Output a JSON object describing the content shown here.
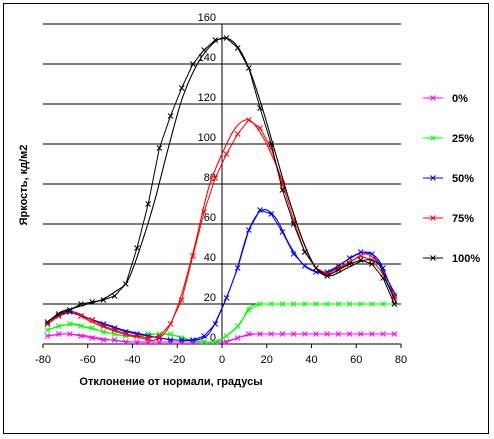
{
  "chart_data": {
    "type": "line",
    "title": "",
    "xlabel": "Отклонение от нормали, градусы",
    "ylabel": "Яркость, кд/м2",
    "xlim": [
      -80,
      80
    ],
    "ylim": [
      0,
      160
    ],
    "x_ticks": [
      "-80",
      "-60",
      "-40",
      "-20",
      "0",
      "20",
      "40",
      "60",
      "80"
    ],
    "y_ticks": [
      "0",
      "20",
      "40",
      "60",
      "80",
      "100",
      "120",
      "140",
      "160"
    ],
    "grid": "horizontal",
    "legend_position": "right",
    "series": [
      {
        "name": "0%",
        "color": "#ff00ff",
        "smooth": [
          [
            -78,
            4
          ],
          [
            -70,
            5
          ],
          [
            -60,
            4
          ],
          [
            -50,
            2
          ],
          [
            -40,
            1
          ],
          [
            -30,
            1
          ],
          [
            -20,
            1
          ],
          [
            -10,
            1
          ],
          [
            0,
            1
          ],
          [
            10,
            4
          ],
          [
            15,
            5
          ],
          [
            20,
            5
          ],
          [
            40,
            5
          ],
          [
            60,
            5
          ],
          [
            78,
            5
          ]
        ],
        "points": [
          [
            -78,
            4
          ],
          [
            -73,
            5
          ],
          [
            -68,
            5
          ],
          [
            -63,
            4
          ],
          [
            -58,
            3
          ],
          [
            -53,
            2
          ],
          [
            -48,
            2
          ],
          [
            -43,
            1
          ],
          [
            -38,
            1
          ],
          [
            -33,
            1
          ],
          [
            -28,
            1
          ],
          [
            -23,
            1
          ],
          [
            -18,
            1
          ],
          [
            -13,
            1
          ],
          [
            -8,
            1
          ],
          [
            -3,
            1
          ],
          [
            2,
            1
          ],
          [
            7,
            3
          ],
          [
            12,
            5
          ],
          [
            17,
            5
          ],
          [
            22,
            5
          ],
          [
            27,
            5
          ],
          [
            32,
            5
          ],
          [
            37,
            5
          ],
          [
            42,
            5
          ],
          [
            47,
            5
          ],
          [
            52,
            5
          ],
          [
            57,
            5
          ],
          [
            62,
            5
          ],
          [
            67,
            5
          ],
          [
            72,
            5
          ],
          [
            77,
            5
          ]
        ]
      },
      {
        "name": "25%",
        "color": "#00ff00",
        "smooth": [
          [
            -78,
            7
          ],
          [
            -72,
            9
          ],
          [
            -66,
            10
          ],
          [
            -60,
            8
          ],
          [
            -52,
            6
          ],
          [
            -44,
            4
          ],
          [
            -36,
            4
          ],
          [
            -28,
            5
          ],
          [
            -20,
            4
          ],
          [
            -14,
            2
          ],
          [
            -8,
            1
          ],
          [
            -3,
            1
          ],
          [
            2,
            4
          ],
          [
            8,
            10
          ],
          [
            12,
            18
          ],
          [
            16,
            20
          ],
          [
            20,
            20
          ],
          [
            40,
            20
          ],
          [
            60,
            20
          ],
          [
            78,
            20
          ]
        ],
        "points": [
          [
            -78,
            7
          ],
          [
            -73,
            9
          ],
          [
            -68,
            10
          ],
          [
            -63,
            9
          ],
          [
            -58,
            8
          ],
          [
            -53,
            6
          ],
          [
            -48,
            5
          ],
          [
            -43,
            4
          ],
          [
            -38,
            4
          ],
          [
            -33,
            5
          ],
          [
            -28,
            5
          ],
          [
            -23,
            5
          ],
          [
            -18,
            3
          ],
          [
            -13,
            2
          ],
          [
            -8,
            1
          ],
          [
            -3,
            1
          ],
          [
            2,
            4
          ],
          [
            7,
            9
          ],
          [
            12,
            17
          ],
          [
            17,
            20
          ],
          [
            22,
            20
          ],
          [
            27,
            20
          ],
          [
            32,
            20
          ],
          [
            37,
            20
          ],
          [
            42,
            20
          ],
          [
            47,
            20
          ],
          [
            52,
            20
          ],
          [
            57,
            20
          ],
          [
            62,
            20
          ],
          [
            67,
            20
          ],
          [
            72,
            20
          ],
          [
            77,
            20
          ]
        ]
      },
      {
        "name": "50%",
        "color": "#0000ff",
        "smooth": [
          [
            -78,
            10
          ],
          [
            -72,
            15
          ],
          [
            -66,
            16
          ],
          [
            -60,
            13
          ],
          [
            -52,
            10
          ],
          [
            -44,
            7
          ],
          [
            -36,
            5
          ],
          [
            -28,
            3
          ],
          [
            -20,
            2
          ],
          [
            -12,
            2
          ],
          [
            -6,
            5
          ],
          [
            0,
            18
          ],
          [
            6,
            35
          ],
          [
            12,
            57
          ],
          [
            18,
            67
          ],
          [
            24,
            63
          ],
          [
            30,
            50
          ],
          [
            36,
            40
          ],
          [
            42,
            36
          ],
          [
            48,
            36
          ],
          [
            56,
            42
          ],
          [
            64,
            46
          ],
          [
            70,
            42
          ],
          [
            74,
            32
          ],
          [
            78,
            24
          ]
        ],
        "points": [
          [
            -78,
            10
          ],
          [
            -73,
            14
          ],
          [
            -68,
            16
          ],
          [
            -63,
            14
          ],
          [
            -58,
            12
          ],
          [
            -53,
            10
          ],
          [
            -48,
            8
          ],
          [
            -43,
            6
          ],
          [
            -38,
            5
          ],
          [
            -33,
            4
          ],
          [
            -28,
            3
          ],
          [
            -23,
            2
          ],
          [
            -18,
            2
          ],
          [
            -13,
            2
          ],
          [
            -8,
            4
          ],
          [
            -3,
            10
          ],
          [
            2,
            23
          ],
          [
            7,
            38
          ],
          [
            12,
            57
          ],
          [
            17,
            67
          ],
          [
            22,
            65
          ],
          [
            27,
            56
          ],
          [
            32,
            45
          ],
          [
            37,
            39
          ],
          [
            42,
            36
          ],
          [
            47,
            36
          ],
          [
            52,
            39
          ],
          [
            57,
            43
          ],
          [
            62,
            46
          ],
          [
            67,
            45
          ],
          [
            72,
            38
          ],
          [
            77,
            24
          ]
        ]
      },
      {
        "name": "75%",
        "color": "#ff0000",
        "smooth": [
          [
            -78,
            10
          ],
          [
            -72,
            15
          ],
          [
            -66,
            16
          ],
          [
            -60,
            12
          ],
          [
            -52,
            8
          ],
          [
            -44,
            5
          ],
          [
            -36,
            3
          ],
          [
            -30,
            2
          ],
          [
            -24,
            8
          ],
          [
            -18,
            25
          ],
          [
            -12,
            50
          ],
          [
            -6,
            78
          ],
          [
            0,
            95
          ],
          [
            6,
            108
          ],
          [
            12,
            112
          ],
          [
            18,
            104
          ],
          [
            24,
            90
          ],
          [
            30,
            72
          ],
          [
            36,
            52
          ],
          [
            42,
            38
          ],
          [
            48,
            35
          ],
          [
            56,
            40
          ],
          [
            64,
            45
          ],
          [
            70,
            40
          ],
          [
            74,
            30
          ],
          [
            78,
            23
          ]
        ],
        "points": [
          [
            -78,
            10
          ],
          [
            -73,
            14
          ],
          [
            -68,
            17
          ],
          [
            -63,
            14
          ],
          [
            -58,
            12
          ],
          [
            -53,
            9
          ],
          [
            -48,
            7
          ],
          [
            -43,
            5
          ],
          [
            -38,
            4
          ],
          [
            -33,
            3
          ],
          [
            -28,
            4
          ],
          [
            -23,
            10
          ],
          [
            -18,
            22
          ],
          [
            -13,
            44
          ],
          [
            -8,
            66
          ],
          [
            -3,
            83
          ],
          [
            2,
            95
          ],
          [
            7,
            105
          ],
          [
            12,
            112
          ],
          [
            17,
            108
          ],
          [
            22,
            98
          ],
          [
            27,
            80
          ],
          [
            32,
            62
          ],
          [
            37,
            46
          ],
          [
            42,
            38
          ],
          [
            47,
            35
          ],
          [
            52,
            38
          ],
          [
            57,
            41
          ],
          [
            62,
            44
          ],
          [
            67,
            42
          ],
          [
            72,
            35
          ],
          [
            77,
            23
          ]
        ]
      },
      {
        "name": "100%",
        "color": "#000000",
        "smooth": [
          [
            -78,
            11
          ],
          [
            -72,
            16
          ],
          [
            -66,
            18
          ],
          [
            -60,
            20
          ],
          [
            -54,
            22
          ],
          [
            -48,
            26
          ],
          [
            -42,
            32
          ],
          [
            -36,
            50
          ],
          [
            -30,
            72
          ],
          [
            -24,
            98
          ],
          [
            -18,
            122
          ],
          [
            -12,
            138
          ],
          [
            -6,
            148
          ],
          [
            0,
            153
          ],
          [
            6,
            150
          ],
          [
            12,
            138
          ],
          [
            18,
            118
          ],
          [
            24,
            95
          ],
          [
            30,
            72
          ],
          [
            36,
            52
          ],
          [
            42,
            38
          ],
          [
            48,
            34
          ],
          [
            56,
            38
          ],
          [
            64,
            42
          ],
          [
            70,
            40
          ],
          [
            74,
            30
          ],
          [
            78,
            20
          ]
        ],
        "points": [
          [
            -78,
            11
          ],
          [
            -73,
            15
          ],
          [
            -68,
            17
          ],
          [
            -63,
            20
          ],
          [
            -58,
            21
          ],
          [
            -53,
            22
          ],
          [
            -48,
            24
          ],
          [
            -43,
            30
          ],
          [
            -38,
            48
          ],
          [
            -33,
            70
          ],
          [
            -28,
            98
          ],
          [
            -23,
            114
          ],
          [
            -18,
            128
          ],
          [
            -13,
            140
          ],
          [
            -8,
            147
          ],
          [
            -3,
            152
          ],
          [
            2,
            153
          ],
          [
            7,
            148
          ],
          [
            12,
            138
          ],
          [
            17,
            118
          ],
          [
            22,
            100
          ],
          [
            27,
            77
          ],
          [
            32,
            60
          ],
          [
            37,
            46
          ],
          [
            42,
            38
          ],
          [
            47,
            34
          ],
          [
            52,
            37
          ],
          [
            57,
            40
          ],
          [
            62,
            42
          ],
          [
            67,
            40
          ],
          [
            72,
            33
          ],
          [
            77,
            20
          ]
        ]
      }
    ]
  }
}
